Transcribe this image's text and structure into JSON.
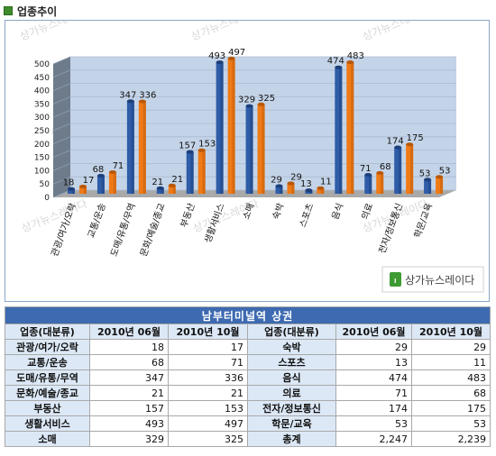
{
  "section": {
    "title": "업종추이"
  },
  "chart_data": {
    "type": "bar",
    "categories": [
      "관광/여가/오락",
      "교통/운송",
      "도매/유통/무역",
      "문화/예술/종교",
      "부동산",
      "생활서비스",
      "소매",
      "숙박",
      "스포츠",
      "음식",
      "의료",
      "전자/정보통신",
      "학문/교육"
    ],
    "series": [
      {
        "name": "2010년 06월",
        "values": [
          18,
          68,
          347,
          21,
          157,
          493,
          329,
          29,
          13,
          474,
          71,
          174,
          53
        ]
      },
      {
        "name": "2010년 10월",
        "values": [
          17,
          71,
          336,
          21,
          153,
          497,
          325,
          29,
          11,
          483,
          68,
          175,
          53
        ]
      }
    ],
    "y_ticks": [
      0,
      50,
      100,
      150,
      200,
      250,
      300,
      350,
      400,
      450,
      500
    ],
    "ylim": [
      0,
      500
    ],
    "colors": {
      "series1": "#2f5da8",
      "series2": "#f07a16",
      "wall": "#c4d4e8",
      "floor": "#a9a9a9"
    },
    "watermark": "상가뉴스레이다"
  },
  "logo": {
    "text": "상가뉴스레이다"
  },
  "table": {
    "title": "남부터미널역 상권",
    "headers": [
      "업종(대분류)",
      "2010년 06월",
      "2010년 10월",
      "업종(대분류)",
      "2010년 06월",
      "2010년 10월"
    ],
    "rows": [
      [
        "관광/여가/오락",
        "18",
        "17",
        "숙박",
        "29",
        "29"
      ],
      [
        "교통/운송",
        "68",
        "71",
        "스포츠",
        "13",
        "11"
      ],
      [
        "도매/유통/무역",
        "347",
        "336",
        "음식",
        "474",
        "483"
      ],
      [
        "문화/예술/종교",
        "21",
        "21",
        "의료",
        "71",
        "68"
      ],
      [
        "부동산",
        "157",
        "153",
        "전자/정보통신",
        "174",
        "175"
      ],
      [
        "생활서비스",
        "493",
        "497",
        "학문/교육",
        "53",
        "53"
      ],
      [
        "소매",
        "329",
        "325",
        "총계",
        "2,247",
        "2,239"
      ]
    ]
  }
}
